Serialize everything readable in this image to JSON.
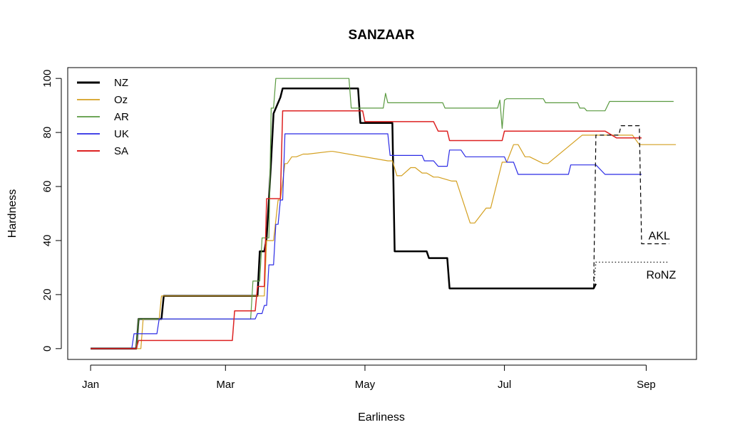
{
  "chart_data": {
    "type": "line",
    "title": "SANZAAR",
    "xlabel": "Earliness",
    "ylabel": "Hardness",
    "x_ticks": [
      "Jan",
      "Mar",
      "May",
      "Jul",
      "Sep"
    ],
    "x_tick_days": [
      0,
      59,
      120,
      181,
      243
    ],
    "y_ticks": [
      0,
      20,
      40,
      60,
      80,
      100
    ],
    "xlim": [
      -10,
      265
    ],
    "ylim": [
      -4,
      104
    ],
    "legend_position": "top-left",
    "grid": false,
    "series": [
      {
        "name": "NZ",
        "color": "#000000",
        "width": 2.5,
        "x": [
          0,
          20,
          21,
          31,
          32,
          73,
          74,
          76,
          77,
          78,
          79,
          80,
          83,
          84,
          86,
          87,
          117,
          118,
          132,
          133,
          147,
          148,
          156,
          157,
          220,
          221
        ],
        "y": [
          0,
          0,
          11,
          11,
          19.5,
          19.5,
          36,
          36,
          41,
          55,
          70,
          87,
          93,
          96.3,
          96.3,
          96.3,
          96.3,
          83.5,
          83.5,
          36,
          36,
          33.5,
          33.5,
          22.3,
          22.3,
          24
        ]
      },
      {
        "name": "Oz",
        "color": "#D4A020",
        "width": 1.2,
        "x": [
          0,
          22,
          23,
          30,
          31,
          76,
          77,
          80,
          82,
          83,
          85,
          86,
          88,
          90,
          93,
          95,
          105,
          106,
          130,
          132,
          134,
          136,
          140,
          142,
          145,
          147,
          150,
          152,
          158,
          160,
          166,
          168,
          173,
          175,
          180,
          182,
          185,
          187,
          190,
          192,
          198,
          200,
          215,
          217,
          235,
          237,
          240,
          242,
          248,
          250,
          256
        ],
        "y": [
          0,
          0,
          11,
          11,
          19.5,
          19.5,
          40,
          40,
          55,
          55,
          68.5,
          68.5,
          71,
          71,
          72,
          72,
          73,
          73,
          69.5,
          69.5,
          64,
          64,
          67,
          67,
          65,
          65,
          63.5,
          63.5,
          62,
          62,
          46.5,
          46.5,
          52,
          52,
          69,
          69,
          75.5,
          75.5,
          71,
          71,
          68.5,
          68.5,
          79,
          79,
          79,
          79,
          75.5,
          75.5,
          75.5,
          75.5,
          75.5
        ]
      },
      {
        "name": "AR",
        "color": "#5A9A40",
        "width": 1.2,
        "x": [
          0,
          20,
          21,
          70,
          71,
          74,
          75,
          78,
          79,
          80,
          81,
          82,
          86,
          95,
          113,
          114,
          128,
          129,
          130,
          131,
          154,
          155,
          178,
          179,
          180,
          181,
          182,
          183,
          198,
          199,
          213,
          214,
          216,
          217,
          225,
          227,
          241,
          255
        ],
        "y": [
          0,
          0,
          11,
          11,
          25,
          25,
          41,
          41,
          89,
          89,
          100,
          100,
          100,
          100,
          100,
          89,
          89,
          94.5,
          91,
          91,
          91,
          89,
          89,
          92,
          81.5,
          92,
          92.5,
          92.5,
          92.5,
          91,
          91,
          89,
          89,
          88,
          88,
          91.5,
          91.5,
          91.5
        ]
      },
      {
        "name": "UK",
        "color": "#2B2BE5",
        "width": 1.2,
        "x": [
          0,
          18,
          19,
          29,
          30,
          72,
          73,
          75,
          76,
          77,
          78,
          80,
          81,
          82,
          83,
          84,
          85,
          130,
          131,
          145,
          146,
          150,
          152,
          156,
          157,
          162,
          164,
          181,
          182,
          185,
          187,
          209,
          210,
          220,
          221,
          225,
          230,
          241
        ],
        "y": [
          0,
          0,
          5.5,
          5.5,
          11,
          11,
          13,
          13,
          16,
          16,
          31,
          31,
          46,
          46,
          55,
          55,
          79.5,
          79.5,
          71.5,
          71.5,
          69.5,
          69.5,
          67.5,
          67.5,
          73.5,
          73.5,
          71,
          71,
          69,
          69,
          64.5,
          64.5,
          68,
          68,
          68,
          64.5,
          64.5,
          64.5
        ]
      },
      {
        "name": "SA",
        "color": "#DD2222",
        "width": 1.5,
        "x": [
          0,
          20,
          21,
          62,
          63,
          72,
          73,
          76,
          77,
          83,
          84,
          85,
          86,
          95,
          119,
          120,
          150,
          152,
          156,
          157,
          158,
          160,
          180,
          181,
          225,
          230,
          232,
          241
        ],
        "y": [
          0,
          0,
          3,
          3,
          14,
          14,
          23,
          23,
          55.5,
          55.5,
          88,
          88,
          88,
          88,
          88,
          84,
          84,
          80.5,
          80.5,
          77,
          77,
          77,
          77,
          80.5,
          80.5,
          78,
          78,
          78
        ]
      }
    ],
    "annotations": [
      {
        "label": "AKL",
        "style": "dashed",
        "x": [
          220,
          221,
          231,
          232,
          240,
          241,
          247,
          253,
          253
        ],
        "y": [
          22.5,
          79,
          79,
          82.5,
          82.5,
          38.8,
          38.8,
          38.8,
          38.8
        ],
        "label_x": 244,
        "label_y": 42
      },
      {
        "label": "RoNZ",
        "style": "dotted",
        "x": [
          220,
          221,
          231,
          253
        ],
        "y": [
          22.5,
          32,
          32,
          32
        ],
        "label_x": 243,
        "label_y": 27.5
      }
    ]
  }
}
